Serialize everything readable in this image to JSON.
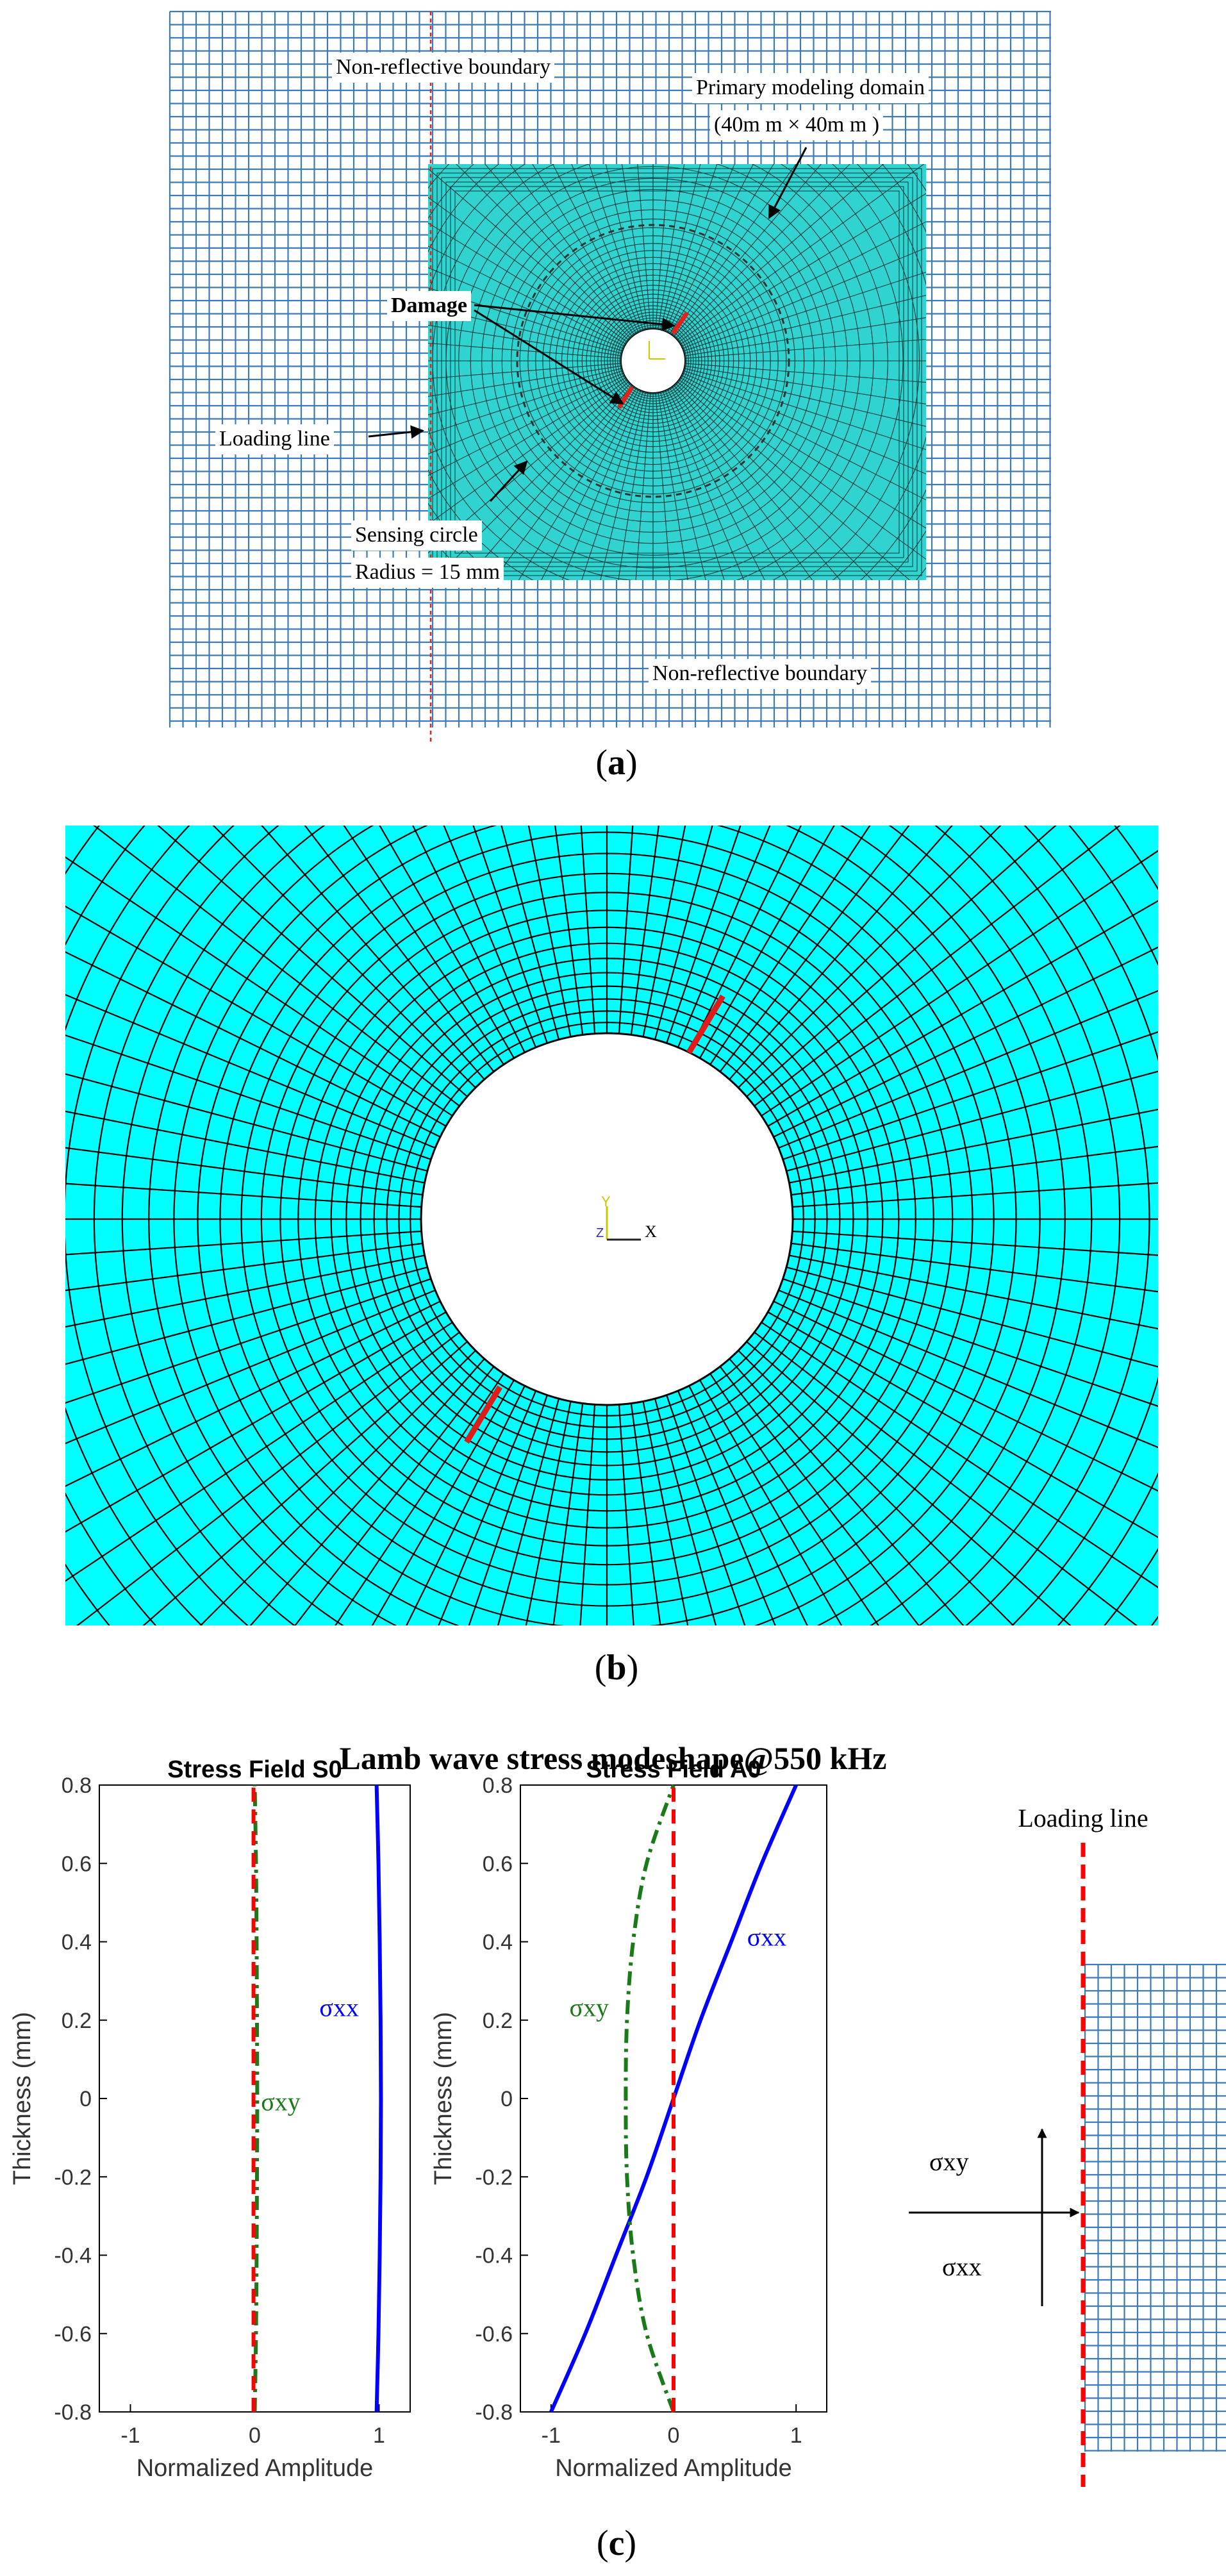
{
  "panel_a": {
    "caption_letter": "a",
    "labels": {
      "top_boundary": "Non-reflective boundary",
      "bottom_boundary": "Non-reflective boundary",
      "primary_domain": "Primary modeling domain",
      "primary_domain_size": "(40m m × 40m m )",
      "damage": "Damage",
      "loading_line": "Loading line",
      "sensing_circle": "Sensing circle",
      "sensing_radius": "Radius = 15 mm"
    },
    "colors": {
      "outer_grid": "#3d7bb6",
      "mesh_fill": "#30d3cf",
      "mesh_line": "#0b3b3a",
      "damage": "#e3221b",
      "loading_line": "#e3221b"
    }
  },
  "panel_b": {
    "caption_letter": "b",
    "axis_labels": {
      "y": "Y",
      "z": "Z",
      "x": "X"
    },
    "colors": {
      "mesh_fill": "#00ffff",
      "mesh_line": "#000000",
      "crack": "#e31a1a",
      "axis": "#c8c800"
    }
  },
  "panel_c": {
    "caption_letter": "c",
    "title": "Lamb wave stress modeshape@550 kHz",
    "ylabel": "Thickness (mm)",
    "xlabel": "Normalized Amplitude",
    "loading_line_label": "Loading line",
    "schematic_labels": {
      "sxy": "σxy",
      "sxx": "σxx"
    }
  },
  "chart_data": [
    {
      "type": "line",
      "title": "Stress Field S0",
      "xlabel": "Normalized Amplitude",
      "ylabel": "Thickness (mm)",
      "xlim": [
        -1.25,
        1.25
      ],
      "ylim": [
        -0.8,
        0.8
      ],
      "xticks": [
        -1,
        0,
        1
      ],
      "yticks": [
        -0.8,
        -0.6,
        -0.4,
        -0.2,
        0,
        0.2,
        0.4,
        0.6,
        0.8
      ],
      "grid": false,
      "annotations": [
        {
          "text": "σxx",
          "x": 0.52,
          "y": 0.21,
          "color": "#0000ff"
        },
        {
          "text": "σxy",
          "x": 0.05,
          "y": -0.03,
          "color": "#1a7a1a"
        }
      ],
      "series": [
        {
          "name": "σxx",
          "color": "#0000ff",
          "dash": "solid",
          "x": [
            0.98,
            0.995,
            1.005,
            1.012,
            1.015,
            1.012,
            1.005,
            0.995,
            0.98
          ],
          "y": [
            -0.8,
            -0.6,
            -0.4,
            -0.2,
            0,
            0.2,
            0.4,
            0.6,
            0.8
          ]
        },
        {
          "name": "σxy",
          "color": "#1a7a1a",
          "dash": "dashdot",
          "x": [
            0.0,
            0.01,
            0.015,
            0.018,
            0.02,
            0.018,
            0.015,
            0.01,
            0.0
          ],
          "y": [
            -0.8,
            -0.6,
            -0.4,
            -0.2,
            0,
            0.2,
            0.4,
            0.6,
            0.8
          ]
        },
        {
          "name": "loading",
          "color": "#ff0000",
          "dash": "dashed",
          "x": [
            -0.01,
            -0.01
          ],
          "y": [
            -0.8,
            0.8
          ]
        }
      ]
    },
    {
      "type": "line",
      "title": "Stress Field A0",
      "xlabel": "Normalized Amplitude",
      "ylabel": "Thickness (mm)",
      "xlim": [
        -1.25,
        1.25
      ],
      "ylim": [
        -0.8,
        0.8
      ],
      "xticks": [
        -1,
        0,
        1
      ],
      "yticks": [
        -0.8,
        -0.6,
        -0.4,
        -0.2,
        0,
        0.2,
        0.4,
        0.6,
        0.8
      ],
      "grid": false,
      "annotations": [
        {
          "text": "σxx",
          "x": 0.6,
          "y": 0.39,
          "color": "#0000ff"
        },
        {
          "text": "σxy",
          "x": -0.85,
          "y": 0.21,
          "color": "#1a7a1a"
        }
      ],
      "series": [
        {
          "name": "σxx",
          "color": "#0000ff",
          "dash": "solid",
          "x": [
            -1.0,
            -0.72,
            -0.47,
            -0.22,
            0.0,
            0.22,
            0.47,
            0.72,
            1.0
          ],
          "y": [
            -0.8,
            -0.6,
            -0.4,
            -0.2,
            0,
            0.2,
            0.4,
            0.6,
            0.8
          ]
        },
        {
          "name": "σxy",
          "color": "#1a7a1a",
          "dash": "dashdot",
          "x": [
            0.0,
            -0.22,
            -0.33,
            -0.38,
            -0.39,
            -0.38,
            -0.33,
            -0.22,
            0.0
          ],
          "y": [
            -0.8,
            -0.6,
            -0.4,
            -0.2,
            0,
            0.2,
            0.4,
            0.6,
            0.8
          ]
        },
        {
          "name": "loading",
          "color": "#ff0000",
          "dash": "dashed",
          "x": [
            0.0,
            0.0
          ],
          "y": [
            -0.8,
            0.8
          ]
        }
      ]
    }
  ]
}
